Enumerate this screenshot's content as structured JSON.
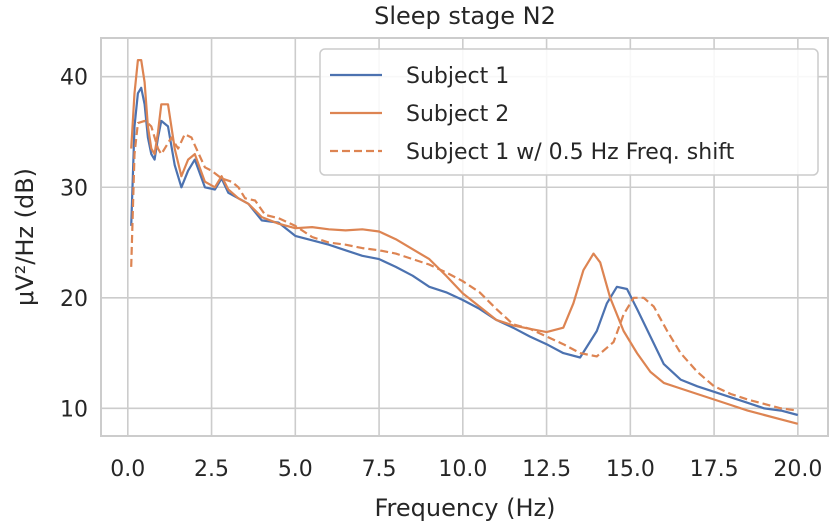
{
  "chart_data": {
    "type": "line",
    "title": "Sleep stage N2",
    "xlabel": "Frequency (Hz)",
    "ylabel": "μV²/Hz (dB)",
    "xlim": [
      -0.8,
      20.9
    ],
    "ylim": [
      7.5,
      43.5
    ],
    "xticks": [
      0.0,
      2.5,
      5.0,
      7.5,
      10.0,
      12.5,
      15.0,
      17.5,
      20.0
    ],
    "xtick_labels": [
      "0.0",
      "2.5",
      "5.0",
      "7.5",
      "10.0",
      "12.5",
      "15.0",
      "17.5",
      "20.0"
    ],
    "yticks": [
      10,
      20,
      30,
      40
    ],
    "ytick_labels": [
      "10",
      "20",
      "30",
      "40"
    ],
    "grid": true,
    "legend": "top-right",
    "series": [
      {
        "name": "Subject 1",
        "color": "#4c72b0",
        "dash": "solid",
        "x": [
          0.1,
          0.2,
          0.3,
          0.4,
          0.5,
          0.6,
          0.7,
          0.8,
          0.9,
          1.0,
          1.2,
          1.4,
          1.6,
          1.8,
          2.0,
          2.3,
          2.6,
          2.8,
          3.0,
          3.3,
          3.6,
          4.0,
          4.5,
          5.0,
          5.5,
          6.0,
          6.5,
          7.0,
          7.5,
          8.0,
          8.5,
          9.0,
          9.5,
          10.0,
          10.5,
          11.0,
          11.5,
          12.0,
          12.5,
          13.0,
          13.5,
          14.0,
          14.3,
          14.6,
          14.9,
          15.2,
          15.6,
          16.0,
          16.5,
          17.0,
          17.5,
          18.0,
          18.5,
          19.0,
          19.5,
          20.0
        ],
        "values": [
          26.5,
          35.5,
          38.5,
          39.0,
          37.5,
          34.5,
          33.0,
          32.5,
          34.5,
          36.0,
          35.5,
          32.0,
          30.0,
          31.5,
          32.5,
          30.0,
          29.8,
          30.8,
          29.5,
          29.0,
          28.5,
          27.0,
          26.8,
          25.6,
          25.2,
          24.8,
          24.3,
          23.8,
          23.5,
          22.8,
          22.0,
          21.0,
          20.5,
          19.8,
          19.0,
          18.0,
          17.3,
          16.5,
          15.8,
          15.0,
          14.6,
          17.0,
          19.5,
          21.0,
          20.8,
          19.0,
          16.5,
          14.0,
          12.6,
          12.0,
          11.5,
          11.0,
          10.5,
          10.0,
          9.8,
          9.4
        ]
      },
      {
        "name": "Subject 2",
        "color": "#dd8452",
        "dash": "solid",
        "x": [
          0.1,
          0.2,
          0.3,
          0.4,
          0.5,
          0.6,
          0.7,
          0.8,
          0.9,
          1.0,
          1.2,
          1.4,
          1.6,
          1.8,
          2.0,
          2.3,
          2.6,
          2.8,
          3.0,
          3.3,
          3.6,
          4.0,
          4.5,
          5.0,
          5.5,
          6.0,
          6.5,
          7.0,
          7.5,
          8.0,
          8.5,
          9.0,
          9.5,
          10.0,
          10.5,
          11.0,
          11.5,
          12.0,
          12.5,
          13.0,
          13.3,
          13.6,
          13.9,
          14.1,
          14.4,
          14.8,
          15.2,
          15.6,
          16.0,
          16.5,
          17.0,
          17.5,
          18.0,
          18.5,
          19.0,
          19.5,
          20.0
        ],
        "values": [
          33.5,
          38.5,
          41.5,
          41.5,
          39.5,
          35.5,
          33.5,
          33.0,
          35.0,
          37.5,
          37.5,
          33.5,
          31.0,
          32.5,
          33.0,
          30.5,
          30.0,
          31.0,
          29.8,
          29.0,
          28.5,
          27.3,
          26.7,
          26.3,
          26.4,
          26.2,
          26.1,
          26.2,
          26.0,
          25.3,
          24.4,
          23.5,
          22.0,
          20.4,
          19.2,
          18.0,
          17.5,
          17.2,
          16.9,
          17.3,
          19.5,
          22.5,
          24.0,
          23.2,
          20.0,
          17.0,
          15.0,
          13.3,
          12.3,
          11.8,
          11.3,
          10.8,
          10.3,
          9.8,
          9.4,
          9.0,
          8.6
        ]
      },
      {
        "name": "Subject 1 w/ 0.5 Hz Freq. shift",
        "color": "#dd8452",
        "dash": "dashed",
        "x": [
          0.1,
          0.2,
          0.3,
          0.5,
          0.6,
          0.7,
          0.9,
          1.0,
          1.1,
          1.3,
          1.5,
          1.7,
          1.9,
          2.0,
          2.3,
          2.5,
          2.8,
          3.1,
          3.3,
          3.5,
          3.8,
          4.1,
          4.5,
          5.0,
          5.5,
          6.0,
          6.5,
          7.0,
          7.5,
          8.0,
          8.5,
          9.0,
          9.5,
          10.0,
          10.5,
          11.0,
          11.5,
          12.0,
          12.5,
          13.0,
          13.5,
          14.0,
          14.5,
          14.8,
          15.1,
          15.4,
          15.7,
          16.1,
          16.5,
          17.0,
          17.5,
          18.0,
          18.5,
          19.0,
          19.5,
          20.0
        ],
        "values": [
          22.8,
          33.0,
          35.8,
          36.0,
          35.8,
          35.5,
          33.5,
          33.0,
          33.5,
          34.5,
          33.5,
          34.8,
          34.5,
          33.8,
          31.8,
          31.5,
          30.8,
          30.5,
          30.0,
          29.0,
          28.8,
          27.5,
          27.2,
          26.5,
          25.5,
          25.0,
          24.8,
          24.5,
          24.3,
          24.0,
          23.5,
          23.0,
          22.3,
          21.5,
          20.5,
          19.0,
          17.6,
          17.2,
          16.5,
          15.8,
          15.0,
          14.7,
          16.0,
          18.5,
          20.0,
          20.0,
          19.2,
          17.0,
          15.0,
          13.3,
          12.0,
          11.3,
          10.8,
          10.4,
          10.0,
          9.8
        ]
      }
    ]
  }
}
